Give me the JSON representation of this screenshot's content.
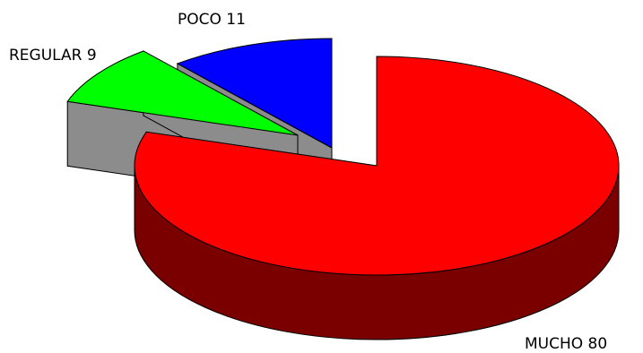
{
  "chart_data": {
    "type": "pie",
    "style": "3d-exploded",
    "categories": [
      "MUCHO",
      "REGULAR",
      "POCO"
    ],
    "values": [
      80,
      9,
      11
    ],
    "colors": [
      "#ff0000",
      "#00ff00",
      "#0000ff"
    ],
    "side_colors": [
      "#7a0000",
      "#8c8c8c",
      "#8c8c8c"
    ],
    "labels": {
      "mucho": "MUCHO 80",
      "regular": "REGULAR 9",
      "poco": "POCO 11"
    },
    "title": "",
    "legend": "none"
  }
}
